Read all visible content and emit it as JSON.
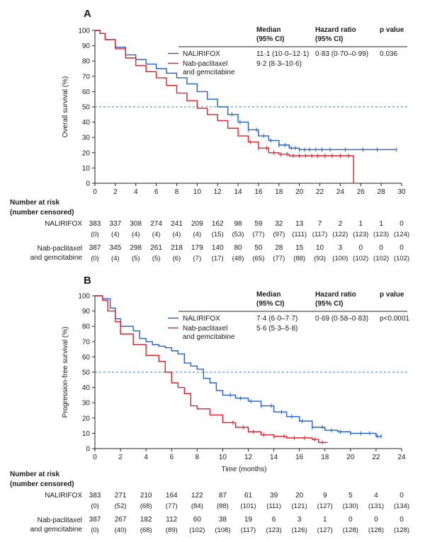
{
  "colors": {
    "nalirifox": "#2060c8",
    "nab": "#e0202c",
    "axis": "#222222",
    "refline": "#2a8a80",
    "text": "#1a1a1a"
  },
  "risk_header": [
    "Number at risk",
    "(number censored)"
  ],
  "chart_data": [
    {
      "panel": "A",
      "type": "line",
      "ylabel": "Overall survival (%)",
      "xlabel": "",
      "xlim": [
        0,
        30
      ],
      "ylim": [
        0,
        100
      ],
      "xticks": [
        0,
        2,
        4,
        6,
        8,
        10,
        12,
        14,
        16,
        18,
        20,
        22,
        24,
        26,
        28,
        30
      ],
      "yticks": [
        0,
        10,
        20,
        30,
        40,
        50,
        60,
        70,
        80,
        90,
        100
      ],
      "reference_line": 50,
      "table": {
        "headers": [
          "Median\n(95% CI)",
          "Hazard ratio\n(95% CI)",
          "p value"
        ],
        "rows": [
          {
            "series": "NALIRIFOX",
            "label_lines": [
              "NALIRIFOX"
            ],
            "median": "11·1 (10·0–12·1)",
            "hr": "0·83 (0·70–0·99)",
            "p": "0.036"
          },
          {
            "series": "Nab-paclitaxel and gemcitabine",
            "label_lines": [
              "Nab-paclitaxel",
              "and gemcitabine"
            ],
            "median": "9·2 (8·3–10·6)",
            "hr": "",
            "p": ""
          }
        ]
      },
      "series": [
        {
          "name": "NALIRIFOX",
          "color": "#2060c8",
          "points": [
            [
              0,
              100
            ],
            [
              0.5,
              98
            ],
            [
              1,
              94
            ],
            [
              2,
              89
            ],
            [
              3,
              84
            ],
            [
              4,
              81
            ],
            [
              5,
              78
            ],
            [
              6,
              75
            ],
            [
              7,
              72
            ],
            [
              8,
              69
            ],
            [
              9,
              65
            ],
            [
              10,
              60
            ],
            [
              11,
              55
            ],
            [
              12,
              50
            ],
            [
              13,
              45
            ],
            [
              14,
              40
            ],
            [
              15,
              35
            ],
            [
              16,
              31
            ],
            [
              17,
              28
            ],
            [
              18,
              25
            ],
            [
              19,
              23
            ],
            [
              20,
              22
            ],
            [
              22,
              22
            ],
            [
              25,
              22
            ],
            [
              29.5,
              22
            ]
          ],
          "censor": [
            13.4,
            14.2,
            15.0,
            15.8,
            16.5,
            17.2,
            18.0,
            18.6,
            19.2,
            19.6,
            20.0,
            20.5,
            21.0,
            21.6,
            22.2,
            23.0,
            24.5,
            26.2,
            27.6,
            29.5
          ]
        },
        {
          "name": "Nab-paclitaxel and gemcitabine",
          "color": "#e0202c",
          "points": [
            [
              0,
              100
            ],
            [
              0.5,
              98
            ],
            [
              1,
              94
            ],
            [
              2,
              88
            ],
            [
              3,
              82
            ],
            [
              4,
              77
            ],
            [
              5,
              73
            ],
            [
              6,
              69
            ],
            [
              7,
              64
            ],
            [
              8,
              59
            ],
            [
              9,
              54
            ],
            [
              10,
              49
            ],
            [
              11,
              45
            ],
            [
              12,
              41
            ],
            [
              13,
              36
            ],
            [
              14,
              31
            ],
            [
              15,
              27
            ],
            [
              16,
              23
            ],
            [
              17,
              20
            ],
            [
              18,
              19
            ],
            [
              19,
              18
            ],
            [
              20,
              18
            ],
            [
              22,
              18
            ],
            [
              25.3,
              18
            ],
            [
              25.3,
              0
            ]
          ],
          "censor": [
            15.2,
            16.0,
            16.8,
            17.5,
            18.2,
            18.8,
            19.4,
            20.0,
            20.6,
            21.2,
            21.8,
            22.5,
            23.2,
            24.0,
            24.8
          ]
        }
      ],
      "risk": {
        "times": [
          0,
          2,
          4,
          6,
          8,
          10,
          12,
          14,
          16,
          18,
          20,
          22,
          24,
          26,
          28,
          30
        ],
        "rows": [
          {
            "label_lines": [
              "NALIRIFOX"
            ],
            "at_risk": [
              "383",
              "337",
              "308",
              "274",
              "241",
              "209",
              "162",
              "98",
              "59",
              "32",
              "13",
              "7",
              "2",
              "1",
              "1",
              "0"
            ],
            "censored": [
              "(0)",
              "(4)",
              "(4)",
              "(4)",
              "(4)",
              "(4)",
              "(15)",
              "(53)",
              "(77)",
              "(97)",
              "(111)",
              "(117)",
              "(122)",
              "(123)",
              "(123)",
              "(124)"
            ]
          },
          {
            "label_lines": [
              "Nab-paclitaxel",
              "and gemcitabine"
            ],
            "at_risk": [
              "387",
              "345",
              "298",
              "261",
              "218",
              "179",
              "140",
              "80",
              "50",
              "28",
              "15",
              "10",
              "3",
              "0",
              "0",
              "0"
            ],
            "censored": [
              "(0)",
              "(4)",
              "(5)",
              "(5)",
              "(6)",
              "(7)",
              "(17)",
              "(48)",
              "(65)",
              "(77)",
              "(88)",
              "(93)",
              "(100)",
              "(102)",
              "(102)",
              "(102)"
            ]
          }
        ]
      }
    },
    {
      "panel": "B",
      "type": "line",
      "ylabel": "Progression-free survival (%)",
      "xlabel": "Time (months)",
      "xlim": [
        0,
        24
      ],
      "ylim": [
        0,
        100
      ],
      "xticks": [
        0,
        2,
        4,
        6,
        8,
        10,
        12,
        14,
        16,
        18,
        20,
        22,
        24
      ],
      "yticks": [
        0,
        10,
        20,
        30,
        40,
        50,
        60,
        70,
        80,
        90,
        100
      ],
      "reference_line": 50,
      "table": {
        "headers": [
          "Median\n(95% CI)",
          "Hazard ratio\n(95% CI)",
          "p value"
        ],
        "rows": [
          {
            "series": "NALIRIFOX",
            "label_lines": [
              "NALIRIFOX"
            ],
            "median": "7·4 (6·0–7·7)",
            "hr": "0·69 (0·58–0·83)",
            "p": "p<0.0001"
          },
          {
            "series": "Nab-paclitaxel and gemcitabine",
            "label_lines": [
              "Nab-paclitaxel",
              "and gemcitabine"
            ],
            "median": "5·6 (5·3–5·8)",
            "hr": "",
            "p": ""
          }
        ]
      },
      "series": [
        {
          "name": "NALIRIFOX",
          "color": "#2060c8",
          "points": [
            [
              0,
              100
            ],
            [
              0.6,
              98
            ],
            [
              1.2,
              92
            ],
            [
              1.6,
              85
            ],
            [
              2,
              80
            ],
            [
              3,
              77
            ],
            [
              3.5,
              72
            ],
            [
              4,
              70
            ],
            [
              4.5,
              68
            ],
            [
              5,
              67
            ],
            [
              5.5,
              66
            ],
            [
              6,
              64
            ],
            [
              6.5,
              62
            ],
            [
              7,
              56
            ],
            [
              7.5,
              54
            ],
            [
              8,
              52
            ],
            [
              8.5,
              46
            ],
            [
              9,
              43
            ],
            [
              9.5,
              38
            ],
            [
              10,
              35
            ],
            [
              11,
              33
            ],
            [
              12,
              31
            ],
            [
              13,
              28
            ],
            [
              14,
              24
            ],
            [
              15,
              21
            ],
            [
              16,
              18
            ],
            [
              17,
              14
            ],
            [
              18,
              12
            ],
            [
              19,
              11
            ],
            [
              20,
              10
            ],
            [
              21,
              10
            ],
            [
              22,
              8
            ],
            [
              22.4,
              8
            ]
          ],
          "censor": [
            10.6,
            11.4,
            12.2,
            13.0,
            13.8,
            14.6,
            15.4,
            16.2,
            17.0,
            17.8,
            18.5,
            19.2,
            20.0,
            20.8,
            21.5,
            22.1,
            22.4
          ]
        },
        {
          "name": "Nab-paclitaxel and gemcitabine",
          "color": "#e0202c",
          "points": [
            [
              0,
              100
            ],
            [
              0.6,
              97
            ],
            [
              1,
              90
            ],
            [
              1.6,
              83
            ],
            [
              2,
              75
            ],
            [
              3,
              68
            ],
            [
              4,
              61
            ],
            [
              5,
              57
            ],
            [
              5.5,
              50
            ],
            [
              6,
              43
            ],
            [
              6.5,
              40
            ],
            [
              7,
              36
            ],
            [
              7.5,
              28
            ],
            [
              8,
              26
            ],
            [
              9,
              22
            ],
            [
              10,
              17
            ],
            [
              11,
              14
            ],
            [
              12,
              11
            ],
            [
              13,
              9
            ],
            [
              14,
              8
            ],
            [
              15,
              7
            ],
            [
              16,
              7
            ],
            [
              17,
              6
            ],
            [
              17.5,
              4
            ],
            [
              18.2,
              4
            ]
          ],
          "censor": [
            10.8,
            11.6,
            12.4,
            13.2,
            14.0,
            14.8,
            15.6,
            16.4,
            17.2,
            17.8
          ]
        }
      ],
      "risk": {
        "times": [
          0,
          2,
          4,
          6,
          8,
          10,
          12,
          14,
          16,
          18,
          20,
          22,
          24
        ],
        "rows": [
          {
            "label_lines": [
              "NALIRIFOX"
            ],
            "at_risk": [
              "383",
              "271",
              "210",
              "164",
              "122",
              "87",
              "61",
              "39",
              "20",
              "9",
              "5",
              "4",
              "0"
            ],
            "censored": [
              "(0)",
              "(52)",
              "(68)",
              "(77)",
              "(84)",
              "(88)",
              "(101)",
              "(111)",
              "(121)",
              "(127)",
              "(130)",
              "(131)",
              "(134)"
            ]
          },
          {
            "label_lines": [
              "Nab-paclitaxel",
              "and gemcitabine"
            ],
            "at_risk": [
              "387",
              "267",
              "182",
              "112",
              "60",
              "38",
              "19",
              "6",
              "3",
              "1",
              "0",
              "0",
              "0"
            ],
            "censored": [
              "(0)",
              "(40)",
              "(68)",
              "(89)",
              "(102)",
              "(108)",
              "(117)",
              "(123)",
              "(126)",
              "(127)",
              "(128)",
              "(128)",
              "(128)"
            ]
          }
        ]
      }
    }
  ]
}
